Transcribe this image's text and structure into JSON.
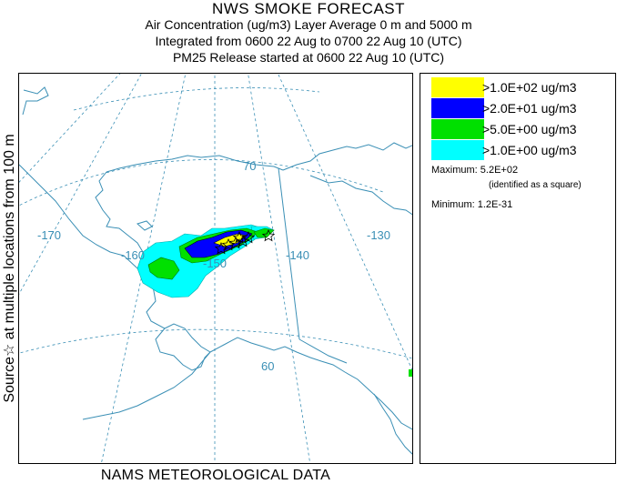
{
  "header": {
    "title": "NWS SMOKE FORECAST",
    "line2": "Air Concentration (ug/m3) Layer Average    0 m and  5000 m",
    "line3": "Integrated from 0600 22 Aug to 0700 22 Aug 10 (UTC)",
    "line4": "PM25 Release started at 0600 22 Aug 10 (UTC)"
  },
  "side_label": "Source☆  at multiple locations  from  100 m",
  "footer": "NAMS METEOROLOGICAL DATA",
  "map": {
    "grid_labels": {
      "lat70": "70",
      "lat60": "60",
      "lon170": "-170",
      "lon160": "-160",
      "lon150": "-150",
      "lon140": "-140",
      "lon130": "-130"
    },
    "colors": {
      "coast": "#3a8fb5",
      "grid": "#3a8fb5",
      "level1": "#00ffff",
      "level2": "#00e000",
      "level3": "#0000ff",
      "level4": "#ffff00"
    },
    "source_marker": "star"
  },
  "legend": {
    "items": [
      {
        "label": ">1.0E+02 ug/m3",
        "color": "#ffff00"
      },
      {
        "label": ">2.0E+01 ug/m3",
        "color": "#0000ff"
      },
      {
        "label": ">5.0E+00 ug/m3",
        "color": "#00e000"
      },
      {
        "label": ">1.0E+00 ug/m3",
        "color": "#00ffff"
      }
    ],
    "maximum_label": "Maximum: 5.2E+02",
    "maximum_note": "(identified as a square)",
    "minimum_label": "Minimum: 1.2E-31"
  }
}
